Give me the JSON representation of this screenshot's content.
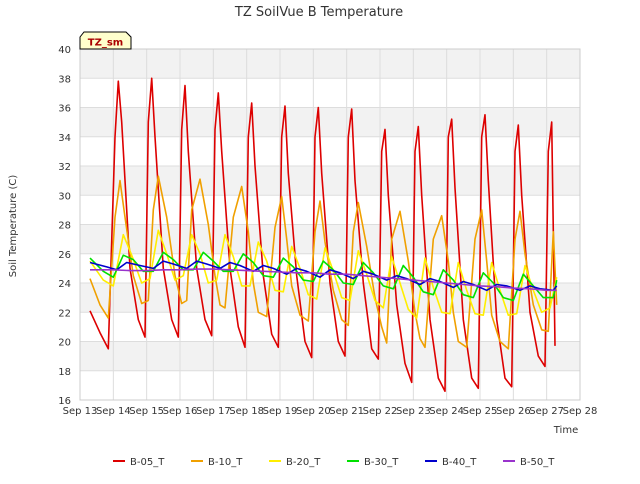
{
  "chart_data": {
    "type": "line",
    "title": "TZ SoilVue B Temperature",
    "xlabel": "Time",
    "ylabel": "Soil Temperature (C)",
    "badge": "TZ_sm",
    "xlim": [
      13,
      28
    ],
    "ylim": [
      16,
      40
    ],
    "yticks": [
      16,
      18,
      20,
      22,
      24,
      26,
      28,
      30,
      32,
      34,
      36,
      38,
      40
    ],
    "xticks": [
      {
        "v": 13,
        "label": "Sep 13"
      },
      {
        "v": 14,
        "label": "Sep 14"
      },
      {
        "v": 15,
        "label": "Sep 15"
      },
      {
        "v": 16,
        "label": "Sep 16"
      },
      {
        "v": 17,
        "label": "Sep 17"
      },
      {
        "v": 18,
        "label": "Sep 18"
      },
      {
        "v": 19,
        "label": "Sep 19"
      },
      {
        "v": 20,
        "label": "Sep 20"
      },
      {
        "v": 21,
        "label": "Sep 21"
      },
      {
        "v": 22,
        "label": "Sep 22"
      },
      {
        "v": 23,
        "label": "Sep 23"
      },
      {
        "v": 24,
        "label": "Sep 24"
      },
      {
        "v": 25,
        "label": "Sep 25"
      },
      {
        "v": 26,
        "label": "Sep 26"
      },
      {
        "v": 27,
        "label": "Sep 27"
      },
      {
        "v": 28,
        "label": "Sep 28"
      }
    ],
    "legend_position": "bottom",
    "x_units": "day of September",
    "series": [
      {
        "name": "B-05_T",
        "color": "#dd0000",
        "x": [
          13.3,
          13.6,
          13.85,
          14.05,
          14.15,
          14.25,
          14.5,
          14.75,
          14.95,
          15.05,
          15.15,
          15.25,
          15.5,
          15.75,
          15.95,
          16.05,
          16.15,
          16.25,
          16.5,
          16.75,
          16.95,
          17.05,
          17.15,
          17.25,
          17.5,
          17.75,
          17.95,
          18.05,
          18.15,
          18.25,
          18.5,
          18.75,
          18.95,
          19.05,
          19.15,
          19.25,
          19.5,
          19.75,
          19.95,
          20.05,
          20.15,
          20.25,
          20.5,
          20.75,
          20.95,
          21.05,
          21.15,
          21.25,
          21.5,
          21.75,
          21.95,
          22.05,
          22.15,
          22.25,
          22.5,
          22.75,
          22.95,
          23.05,
          23.15,
          23.25,
          23.5,
          23.75,
          23.95,
          24.05,
          24.15,
          24.25,
          24.5,
          24.75,
          24.95,
          25.05,
          25.15,
          25.25,
          25.5,
          25.75,
          25.95,
          26.05,
          26.15,
          26.25,
          26.5,
          26.75,
          26.95,
          27.05,
          27.15,
          27.25
        ],
        "y": [
          22.1,
          20.6,
          19.5,
          34.0,
          37.8,
          35.0,
          25.0,
          21.5,
          20.3,
          35.0,
          38.0,
          34.0,
          25.0,
          21.5,
          20.3,
          34.5,
          37.5,
          33.0,
          25.0,
          21.5,
          20.4,
          34.5,
          37.0,
          33.0,
          25.0,
          21.0,
          19.6,
          34.0,
          36.3,
          32.0,
          24.5,
          20.5,
          19.6,
          34.0,
          36.1,
          31.5,
          24.5,
          20.0,
          18.9,
          34.0,
          36.0,
          31.5,
          24.0,
          20.0,
          19.0,
          34.0,
          35.9,
          31.0,
          24.0,
          19.5,
          18.8,
          33.0,
          34.5,
          30.0,
          22.5,
          18.5,
          17.2,
          33.0,
          34.7,
          30.0,
          21.5,
          17.5,
          16.6,
          34.0,
          35.2,
          30.5,
          21.5,
          17.5,
          16.8,
          34.0,
          35.5,
          31.0,
          21.5,
          17.5,
          16.9,
          33.0,
          34.8,
          30.0,
          22.0,
          19.0,
          18.3,
          33.0,
          35.0,
          19.7
        ]
      },
      {
        "name": "B-10_T",
        "color": "#f0a000",
        "x": [
          13.3,
          13.6,
          13.85,
          14.05,
          14.2,
          14.35,
          14.6,
          14.85,
          15.05,
          15.2,
          15.35,
          15.6,
          15.85,
          16.05,
          16.2,
          16.35,
          16.6,
          16.85,
          17.05,
          17.2,
          17.35,
          17.6,
          17.85,
          18.05,
          18.2,
          18.35,
          18.6,
          18.85,
          19.05,
          19.2,
          19.35,
          19.6,
          19.85,
          20.05,
          20.2,
          20.35,
          20.6,
          20.85,
          21.05,
          21.2,
          21.35,
          21.6,
          21.85,
          22.05,
          22.2,
          22.35,
          22.6,
          22.85,
          23.05,
          23.2,
          23.35,
          23.6,
          23.85,
          24.05,
          24.2,
          24.35,
          24.6,
          24.85,
          25.05,
          25.2,
          25.35,
          25.6,
          25.85,
          26.05,
          26.2,
          26.35,
          26.6,
          26.85,
          27.05,
          27.2,
          27.3
        ],
        "y": [
          24.3,
          22.5,
          21.6,
          28.5,
          31.0,
          28.5,
          24.5,
          22.6,
          22.8,
          29.0,
          31.3,
          28.5,
          24.5,
          22.6,
          22.8,
          29.0,
          31.1,
          28.0,
          24.5,
          22.5,
          22.3,
          28.5,
          30.6,
          27.5,
          24.0,
          22.0,
          21.7,
          27.8,
          29.9,
          27.0,
          23.8,
          21.8,
          21.4,
          27.5,
          29.6,
          26.8,
          23.5,
          21.5,
          21.1,
          27.5,
          29.5,
          26.5,
          23.0,
          21.0,
          19.9,
          27.0,
          28.9,
          25.5,
          22.0,
          20.2,
          19.6,
          27.0,
          28.6,
          25.5,
          22.0,
          20.0,
          19.6,
          27.0,
          29.0,
          25.5,
          21.8,
          20.0,
          19.5,
          27.0,
          28.9,
          26.0,
          22.5,
          20.8,
          20.7,
          27.5,
          22.5
        ]
      },
      {
        "name": "B-20_T",
        "color": "#ffee00",
        "x": [
          13.3,
          13.7,
          14.0,
          14.3,
          14.55,
          14.85,
          15.1,
          15.35,
          15.6,
          15.85,
          16.1,
          16.35,
          16.6,
          16.85,
          17.1,
          17.35,
          17.6,
          17.85,
          18.1,
          18.35,
          18.6,
          18.85,
          19.1,
          19.35,
          19.6,
          19.85,
          20.1,
          20.35,
          20.6,
          20.85,
          21.1,
          21.35,
          21.6,
          21.85,
          22.1,
          22.35,
          22.6,
          22.85,
          23.1,
          23.35,
          23.6,
          23.85,
          24.1,
          24.35,
          24.6,
          24.85,
          25.1,
          25.35,
          25.6,
          25.85,
          26.1,
          26.35,
          26.6,
          26.85,
          27.1,
          27.3
        ],
        "y": [
          25.5,
          24.2,
          23.8,
          27.3,
          25.9,
          24.0,
          24.3,
          27.6,
          26.0,
          24.2,
          24.5,
          27.3,
          26.0,
          24.0,
          24.2,
          27.3,
          25.8,
          23.8,
          23.8,
          26.8,
          25.5,
          23.5,
          23.4,
          26.5,
          25.0,
          23.2,
          22.9,
          26.4,
          24.8,
          23.0,
          22.8,
          26.2,
          24.6,
          22.8,
          22.3,
          25.8,
          24.0,
          22.2,
          21.6,
          25.7,
          23.7,
          22.0,
          21.9,
          25.4,
          23.5,
          21.9,
          21.8,
          25.4,
          23.5,
          21.8,
          21.9,
          25.2,
          23.5,
          22.0,
          22.3,
          24.4
        ]
      },
      {
        "name": "B-30_T",
        "color": "#00e000",
        "x": [
          13.3,
          13.7,
          14.0,
          14.3,
          14.6,
          14.9,
          15.2,
          15.5,
          15.8,
          16.1,
          16.4,
          16.7,
          17.0,
          17.3,
          17.6,
          17.9,
          18.2,
          18.5,
          18.8,
          19.1,
          19.4,
          19.7,
          20.0,
          20.3,
          20.6,
          20.9,
          21.2,
          21.5,
          21.8,
          22.1,
          22.4,
          22.7,
          23.0,
          23.3,
          23.6,
          23.9,
          24.2,
          24.5,
          24.8,
          25.1,
          25.4,
          25.7,
          26.0,
          26.3,
          26.6,
          26.9,
          27.2,
          27.3
        ],
        "y": [
          25.7,
          24.8,
          24.4,
          25.9,
          25.6,
          24.8,
          24.8,
          26.1,
          25.6,
          24.9,
          24.9,
          26.1,
          25.5,
          24.8,
          24.8,
          26.0,
          25.4,
          24.5,
          24.4,
          25.7,
          25.1,
          24.2,
          24.1,
          25.5,
          24.9,
          24.0,
          23.9,
          25.4,
          24.7,
          23.8,
          23.6,
          25.2,
          24.4,
          23.4,
          23.2,
          24.9,
          24.2,
          23.2,
          23.0,
          24.7,
          24.0,
          23.0,
          22.8,
          24.6,
          23.8,
          23.0,
          23.0,
          24.2
        ]
      },
      {
        "name": "B-40_T",
        "color": "#0000cc",
        "x": [
          13.3,
          13.8,
          14.1,
          14.4,
          14.8,
          15.2,
          15.5,
          15.8,
          16.2,
          16.5,
          16.8,
          17.2,
          17.5,
          17.8,
          18.2,
          18.5,
          18.8,
          19.2,
          19.5,
          19.8,
          20.2,
          20.5,
          20.8,
          21.2,
          21.5,
          21.8,
          22.2,
          22.5,
          22.8,
          23.2,
          23.5,
          23.8,
          24.2,
          24.5,
          24.8,
          25.2,
          25.5,
          25.8,
          26.2,
          26.5,
          26.8,
          27.2,
          27.3
        ],
        "y": [
          25.4,
          25.1,
          24.9,
          25.4,
          25.2,
          25.0,
          25.5,
          25.3,
          25.0,
          25.5,
          25.3,
          25.0,
          25.4,
          25.2,
          24.8,
          25.2,
          25.0,
          24.6,
          25.0,
          24.8,
          24.4,
          24.9,
          24.7,
          24.3,
          24.8,
          24.6,
          24.2,
          24.5,
          24.3,
          23.9,
          24.3,
          24.1,
          23.7,
          24.1,
          23.9,
          23.5,
          23.9,
          23.8,
          23.5,
          23.8,
          23.6,
          23.5,
          23.8
        ]
      },
      {
        "name": "B-50_T",
        "color": "#9933cc",
        "x": [
          13.3,
          14.0,
          14.5,
          15.0,
          15.5,
          16.0,
          16.5,
          17.0,
          17.5,
          18.0,
          18.5,
          19.0,
          19.5,
          20.0,
          20.5,
          21.0,
          21.5,
          22.0,
          22.5,
          23.0,
          23.5,
          24.0,
          24.5,
          25.0,
          25.5,
          26.0,
          26.5,
          27.0,
          27.3
        ],
        "y": [
          24.9,
          24.9,
          24.85,
          24.85,
          24.9,
          24.9,
          24.95,
          24.95,
          24.9,
          24.85,
          24.8,
          24.75,
          24.7,
          24.7,
          24.6,
          24.6,
          24.5,
          24.4,
          24.3,
          24.2,
          24.1,
          24.0,
          23.9,
          23.8,
          23.75,
          23.65,
          23.6,
          23.5,
          23.5
        ]
      }
    ]
  }
}
